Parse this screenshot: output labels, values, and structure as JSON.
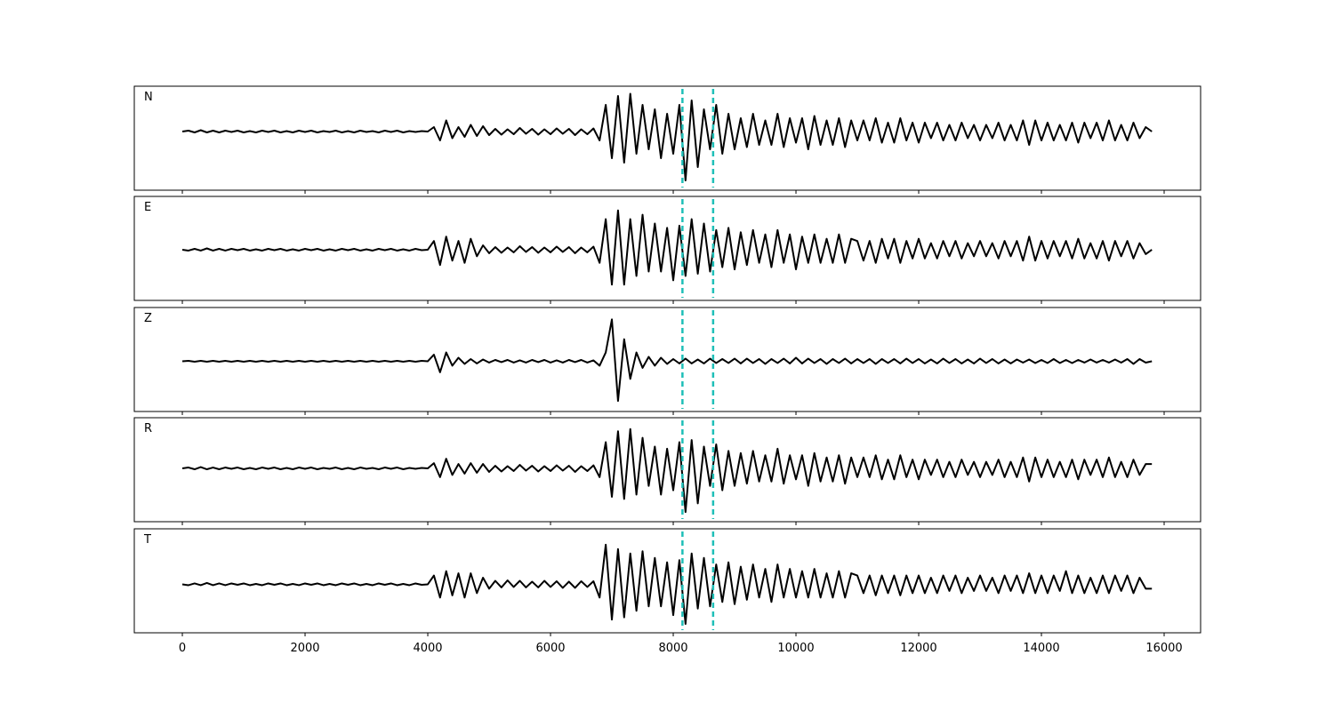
{
  "chart_data": {
    "type": "line",
    "x": [
      0,
      100,
      200,
      300,
      400,
      500,
      600,
      700,
      800,
      900,
      1000,
      1100,
      1200,
      1300,
      1400,
      1500,
      1600,
      1700,
      1800,
      1900,
      2000,
      2100,
      2200,
      2300,
      2400,
      2500,
      2600,
      2700,
      2800,
      2900,
      3000,
      3100,
      3200,
      3300,
      3400,
      3500,
      3600,
      3700,
      3800,
      3900,
      4000,
      4100,
      4200,
      4300,
      4400,
      4500,
      4600,
      4700,
      4800,
      4900,
      5000,
      5100,
      5200,
      5300,
      5400,
      5500,
      5600,
      5700,
      5800,
      5900,
      6000,
      6100,
      6200,
      6300,
      6400,
      6500,
      6600,
      6700,
      6800,
      6900,
      7000,
      7100,
      7200,
      7300,
      7400,
      7500,
      7600,
      7700,
      7800,
      7900,
      8000,
      8100,
      8200,
      8300,
      8400,
      8500,
      8600,
      8700,
      8800,
      8900,
      9000,
      9100,
      9200,
      9300,
      9400,
      9500,
      9600,
      9700,
      9800,
      9900,
      10000,
      10100,
      10200,
      10300,
      10400,
      10500,
      10600,
      10700,
      10800,
      10900,
      11000,
      11100,
      11200,
      11300,
      11400,
      11500,
      11600,
      11700,
      11800,
      11900,
      12000,
      12100,
      12200,
      12300,
      12400,
      12500,
      12600,
      12700,
      12800,
      12900,
      13000,
      13100,
      13200,
      13300,
      13400,
      13500,
      13600,
      13700,
      13800,
      13900,
      14000,
      14100,
      14200,
      14300,
      14400,
      14500,
      14600,
      14700,
      14800,
      14900,
      15000,
      15100,
      15200,
      15300,
      15400,
      15500,
      15600,
      15700,
      15800
    ],
    "xlim": [
      -783,
      16594
    ],
    "xticks": [
      0,
      2000,
      4000,
      6000,
      8000,
      10000,
      12000,
      14000,
      16000
    ],
    "vlines": [
      8150,
      8650
    ],
    "vline_color": "#1fbfb8",
    "series": [
      {
        "name": "N",
        "color": "#000000",
        "ylim": [
          -1.32,
          1.02
        ],
        "values": [
          0,
          0.02,
          -0.02,
          0.03,
          -0.02,
          0.02,
          -0.02,
          0.02,
          -0.01,
          0.02,
          -0.02,
          0.01,
          -0.02,
          0.02,
          -0.01,
          0.02,
          -0.02,
          0.01,
          -0.02,
          0.02,
          -0.01,
          0.02,
          -0.02,
          0.01,
          -0.01,
          0.02,
          -0.02,
          0.01,
          -0.02,
          0.02,
          -0.01,
          0.01,
          -0.02,
          0.02,
          -0.01,
          0.02,
          -0.02,
          0.01,
          -0.01,
          0.01,
          0,
          0.1,
          -0.2,
          0.25,
          -0.15,
          0.1,
          -0.12,
          0.15,
          -0.1,
          0.12,
          -0.08,
          0.06,
          -0.07,
          0.05,
          -0.06,
          0.08,
          -0.05,
          0.06,
          -0.07,
          0.05,
          -0.06,
          0.07,
          -0.05,
          0.06,
          -0.08,
          0.05,
          -0.06,
          0.07,
          -0.2,
          0.6,
          -0.6,
          0.8,
          -0.7,
          0.85,
          -0.5,
          0.6,
          -0.4,
          0.5,
          -0.6,
          0.4,
          -0.5,
          0.6,
          -1.1,
          0.7,
          -0.8,
          0.5,
          -0.4,
          0.6,
          -0.5,
          0.4,
          -0.4,
          0.3,
          -0.35,
          0.4,
          -0.3,
          0.25,
          -0.3,
          0.4,
          -0.35,
          0.3,
          -0.25,
          0.3,
          -0.4,
          0.35,
          -0.3,
          0.25,
          -0.3,
          0.3,
          -0.35,
          0.25,
          -0.2,
          0.25,
          -0.2,
          0.3,
          -0.25,
          0.2,
          -0.25,
          0.3,
          -0.2,
          0.2,
          -0.25,
          0.2,
          -0.15,
          0.2,
          -0.2,
          0.15,
          -0.2,
          0.2,
          -0.15,
          0.15,
          -0.2,
          0.15,
          -0.15,
          0.2,
          -0.2,
          0.15,
          -0.2,
          0.25,
          -0.3,
          0.25,
          -0.2,
          0.2,
          -0.2,
          0.15,
          -0.2,
          0.2,
          -0.25,
          0.2,
          -0.15,
          0.2,
          -0.2,
          0.25,
          -0.2,
          0.15,
          -0.2,
          0.2,
          -0.15,
          0.1,
          0
        ]
      },
      {
        "name": "E",
        "color": "#000000",
        "ylim": [
          -1.16,
          1.22
        ],
        "values": [
          0,
          -0.02,
          0.02,
          -0.02,
          0.03,
          -0.02,
          0.02,
          -0.02,
          0.02,
          -0.01,
          0.02,
          -0.02,
          0.01,
          -0.02,
          0.02,
          -0.01,
          0.02,
          -0.02,
          0.01,
          -0.02,
          0.02,
          -0.01,
          0.02,
          -0.02,
          0.01,
          -0.02,
          0.02,
          -0.01,
          0.02,
          -0.02,
          0.01,
          -0.02,
          0.02,
          -0.01,
          0.02,
          -0.02,
          0.01,
          -0.02,
          0.02,
          -0.01,
          0,
          0.2,
          -0.35,
          0.3,
          -0.25,
          0.2,
          -0.3,
          0.25,
          -0.15,
          0.1,
          -0.08,
          0.06,
          -0.07,
          0.05,
          -0.06,
          0.08,
          -0.05,
          0.06,
          -0.07,
          0.05,
          -0.06,
          0.07,
          -0.05,
          0.06,
          -0.08,
          0.05,
          -0.06,
          0.07,
          -0.3,
          0.7,
          -0.8,
          0.9,
          -0.8,
          0.7,
          -0.6,
          0.8,
          -0.5,
          0.6,
          -0.5,
          0.5,
          -0.7,
          0.55,
          -0.6,
          0.7,
          -0.55,
          0.6,
          -0.5,
          0.45,
          -0.4,
          0.5,
          -0.45,
          0.4,
          -0.35,
          0.45,
          -0.3,
          0.35,
          -0.4,
          0.45,
          -0.3,
          0.35,
          -0.45,
          0.3,
          -0.3,
          0.35,
          -0.3,
          0.25,
          -0.3,
          0.35,
          -0.3,
          0.25,
          0.2,
          -0.25,
          0.2,
          -0.3,
          0.25,
          -0.2,
          0.25,
          -0.3,
          0.2,
          -0.2,
          0.25,
          -0.2,
          0.15,
          -0.2,
          0.2,
          -0.15,
          0.2,
          -0.2,
          0.15,
          -0.15,
          0.2,
          -0.15,
          0.15,
          -0.2,
          0.2,
          -0.15,
          0.2,
          -0.25,
          0.3,
          -0.25,
          0.2,
          -0.2,
          0.2,
          -0.15,
          0.2,
          -0.2,
          0.25,
          -0.2,
          0.15,
          -0.2,
          0.2,
          -0.25,
          0.2,
          -0.15,
          0.2,
          -0.2,
          0.15,
          -0.1,
          0
        ]
      },
      {
        "name": "Z",
        "color": "#000000",
        "ylim": [
          -1.14,
          1.22
        ],
        "values": [
          0,
          0.01,
          -0.01,
          0.01,
          -0.01,
          0.01,
          -0.01,
          0.01,
          -0.01,
          0.01,
          -0.01,
          0.01,
          -0.01,
          0.01,
          -0.01,
          0.01,
          -0.01,
          0.01,
          -0.01,
          0.01,
          -0.01,
          0.01,
          -0.01,
          0.01,
          -0.01,
          0.01,
          -0.01,
          0.01,
          -0.01,
          0.01,
          -0.01,
          0.01,
          -0.01,
          0.01,
          -0.01,
          0.01,
          -0.01,
          0.01,
          -0.01,
          0.01,
          0,
          0.15,
          -0.25,
          0.2,
          -0.1,
          0.08,
          -0.06,
          0.05,
          -0.05,
          0.04,
          -0.03,
          0.03,
          -0.02,
          0.03,
          -0.03,
          0.02,
          -0.03,
          0.03,
          -0.02,
          0.03,
          -0.03,
          0.02,
          -0.03,
          0.03,
          -0.02,
          0.03,
          -0.03,
          0.02,
          -0.1,
          0.2,
          0.95,
          -0.9,
          0.5,
          -0.4,
          0.2,
          -0.15,
          0.1,
          -0.1,
          0.08,
          -0.06,
          0.05,
          -0.05,
          0.06,
          -0.05,
          0.04,
          -0.05,
          0.06,
          -0.04,
          0.05,
          -0.04,
          0.06,
          -0.05,
          0.06,
          -0.04,
          0.05,
          -0.06,
          0.05,
          -0.04,
          0.06,
          -0.05,
          0.08,
          -0.05,
          0.06,
          -0.04,
          0.05,
          -0.06,
          0.05,
          -0.04,
          0.06,
          -0.05,
          0.05,
          -0.04,
          0.05,
          -0.06,
          0.05,
          -0.04,
          0.05,
          -0.05,
          0.06,
          -0.04,
          0.05,
          -0.05,
          0.04,
          -0.05,
          0.06,
          -0.04,
          0.05,
          -0.05,
          0.04,
          -0.05,
          0.06,
          -0.04,
          0.05,
          -0.05,
          0.04,
          -0.05,
          0.04,
          -0.03,
          0.04,
          -0.04,
          0.03,
          -0.04,
          0.05,
          -0.04,
          0.03,
          -0.04,
          0.03,
          -0.03,
          0.04,
          -0.03,
          0.03,
          -0.03,
          0.04,
          -0.03,
          0.05,
          -0.06,
          0.05,
          -0.03,
          0
        ]
      },
      {
        "name": "R",
        "color": "#000000",
        "ylim": [
          -1.22,
          1.16
        ],
        "values": [
          0,
          0.02,
          -0.02,
          0.03,
          -0.02,
          0.02,
          -0.02,
          0.02,
          -0.01,
          0.02,
          -0.02,
          0.01,
          -0.02,
          0.02,
          -0.01,
          0.02,
          -0.02,
          0.01,
          -0.02,
          0.02,
          -0.01,
          0.02,
          -0.02,
          0.01,
          -0.01,
          0.02,
          -0.02,
          0.01,
          -0.02,
          0.02,
          -0.01,
          0.01,
          -0.02,
          0.02,
          -0.01,
          0.02,
          -0.02,
          0.01,
          -0.01,
          0.01,
          0,
          0.12,
          -0.2,
          0.22,
          -0.15,
          0.1,
          -0.12,
          0.12,
          -0.1,
          0.1,
          -0.08,
          0.06,
          -0.07,
          0.05,
          -0.06,
          0.08,
          -0.05,
          0.06,
          -0.07,
          0.05,
          -0.06,
          0.07,
          -0.05,
          0.06,
          -0.08,
          0.05,
          -0.06,
          0.07,
          -0.2,
          0.6,
          -0.65,
          0.85,
          -0.7,
          0.9,
          -0.6,
          0.7,
          -0.4,
          0.5,
          -0.6,
          0.45,
          -0.5,
          0.6,
          -1.0,
          0.65,
          -0.8,
          0.5,
          -0.4,
          0.55,
          -0.5,
          0.4,
          -0.4,
          0.35,
          -0.35,
          0.4,
          -0.3,
          0.3,
          -0.3,
          0.45,
          -0.35,
          0.3,
          -0.25,
          0.3,
          -0.4,
          0.35,
          -0.3,
          0.25,
          -0.3,
          0.3,
          -0.35,
          0.25,
          -0.2,
          0.25,
          -0.2,
          0.3,
          -0.25,
          0.2,
          -0.25,
          0.3,
          -0.2,
          0.2,
          -0.25,
          0.2,
          -0.15,
          0.2,
          -0.2,
          0.15,
          -0.2,
          0.2,
          -0.15,
          0.15,
          -0.2,
          0.15,
          -0.15,
          0.2,
          -0.2,
          0.15,
          -0.2,
          0.25,
          -0.3,
          0.25,
          -0.2,
          0.2,
          -0.2,
          0.15,
          -0.2,
          0.2,
          -0.25,
          0.2,
          -0.15,
          0.2,
          -0.2,
          0.25,
          -0.2,
          0.15,
          -0.2,
          0.2,
          -0.15,
          0.1,
          0.1
        ]
      },
      {
        "name": "T",
        "color": "#000000",
        "ylim": [
          -1.1,
          1.26
        ],
        "values": [
          0,
          -0.02,
          0.02,
          -0.02,
          0.03,
          -0.02,
          0.02,
          -0.02,
          0.02,
          -0.01,
          0.02,
          -0.02,
          0.01,
          -0.02,
          0.02,
          -0.01,
          0.02,
          -0.02,
          0.01,
          -0.02,
          0.02,
          -0.01,
          0.02,
          -0.02,
          0.01,
          -0.02,
          0.02,
          -0.01,
          0.02,
          -0.02,
          0.01,
          -0.02,
          0.02,
          -0.01,
          0.02,
          -0.02,
          0.01,
          -0.02,
          0.02,
          -0.01,
          0,
          0.2,
          -0.3,
          0.3,
          -0.25,
          0.25,
          -0.3,
          0.25,
          -0.2,
          0.15,
          -0.1,
          0.08,
          -0.07,
          0.09,
          -0.06,
          0.08,
          -0.07,
          0.06,
          -0.07,
          0.08,
          -0.06,
          0.07,
          -0.08,
          0.06,
          -0.08,
          0.07,
          -0.06,
          0.07,
          -0.3,
          0.9,
          -0.8,
          0.8,
          -0.75,
          0.7,
          -0.6,
          0.75,
          -0.5,
          0.6,
          -0.5,
          0.5,
          -0.7,
          0.55,
          -0.9,
          0.7,
          -0.55,
          0.6,
          -0.5,
          0.45,
          -0.4,
          0.5,
          -0.45,
          0.4,
          -0.35,
          0.45,
          -0.3,
          0.35,
          -0.4,
          0.45,
          -0.3,
          0.35,
          -0.3,
          0.3,
          -0.3,
          0.35,
          -0.3,
          0.25,
          -0.3,
          0.3,
          -0.3,
          0.25,
          0.2,
          -0.2,
          0.2,
          -0.25,
          0.2,
          -0.2,
          0.2,
          -0.25,
          0.2,
          -0.2,
          0.2,
          -0.2,
          0.15,
          -0.2,
          0.2,
          -0.15,
          0.2,
          -0.2,
          0.15,
          -0.15,
          0.2,
          -0.15,
          0.15,
          -0.2,
          0.2,
          -0.15,
          0.2,
          -0.2,
          0.25,
          -0.2,
          0.2,
          -0.2,
          0.2,
          -0.15,
          0.3,
          -0.2,
          0.2,
          -0.2,
          0.15,
          -0.2,
          0.2,
          -0.2,
          0.2,
          -0.15,
          0.2,
          -0.2,
          0.15,
          -0.1,
          -0.1
        ]
      }
    ]
  }
}
